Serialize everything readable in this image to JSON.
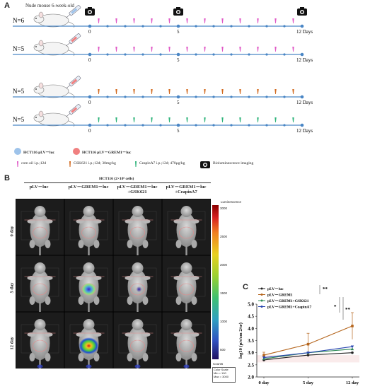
{
  "panel_a": {
    "letter": "A",
    "header": "Nude mouse 6-week-old",
    "timelines": [
      {
        "n_label": "N=6",
        "marker": "pink",
        "cells": "blue"
      },
      {
        "n_label": "N=5",
        "marker": "pink",
        "cells": "red"
      },
      {
        "n_label": "N=5",
        "marker": "orange",
        "cells": "red"
      },
      {
        "n_label": "N=5",
        "marker": "green",
        "cells": "red"
      }
    ],
    "tick_labels": {
      "start": "0",
      "mid": "5",
      "end": "12 Days"
    },
    "legend": {
      "cell1": "HCT116 pLV－luc",
      "cell2": "HCT116 pLV－GREM1－luc",
      "drug1": "corn oil i.p.;12d",
      "drug2": "GSK621 i.p.;12d; 30mg/kg",
      "drug3": "CeapinA7 i.p.;12d; 470μg/kg",
      "imaging": "Bioluminescence imaging"
    },
    "colors": {
      "timeline": "#4a86c5",
      "pink": "#e058c6",
      "orange": "#d2691e",
      "green": "#2db37a",
      "blue_dot": "#9ec3ea",
      "red_dot": "#f08080"
    }
  },
  "panel_b": {
    "letter": "B",
    "header": "HCT116 (2×10⁶ cells)",
    "columns": [
      "pLV－luc",
      "pLV－GREM1－luc",
      "pLV－GREM1－luc\n+GSK621",
      "pLV－GREM1－luc\n+CeapinA7"
    ],
    "rows": [
      "0 day",
      "5 day",
      "12 day"
    ],
    "colorbar": {
      "title": "Luminescence",
      "ticks": [
        "3000",
        "2500",
        "2000",
        "1500",
        "1000",
        "500"
      ],
      "counts_label": "Counts",
      "scale_box": [
        "Color Scale",
        "Min = 100",
        "Max = 3000"
      ]
    }
  },
  "panel_c": {
    "letter": "C",
    "significance": [
      "**",
      "*",
      "**"
    ]
  },
  "chart_data": {
    "type": "line",
    "categories": [
      "0 day",
      "5 day",
      "12 day"
    ],
    "ylabel": "log10 (p/s/cm 2/sr)",
    "ylim": [
      2.0,
      5.0
    ],
    "yticks": [
      "2.0",
      "2.5",
      "3.0",
      "3.5",
      "4.0",
      "4.5",
      "5.0"
    ],
    "series": [
      {
        "name": "pLV－luc",
        "values": [
          2.7,
          2.9,
          3.0
        ],
        "color": "#222222"
      },
      {
        "name": "pLV－GREM1",
        "values": [
          2.9,
          3.35,
          4.1
        ],
        "err": [
          0.12,
          0.45,
          0.55
        ],
        "color": "#b5651d"
      },
      {
        "name": "pLV－GREM1+GSK621",
        "values": [
          2.75,
          3.0,
          3.15
        ],
        "color": "#2e8b57"
      },
      {
        "name": "pLV－GREM1+CeapinA7",
        "values": [
          2.8,
          3.0,
          3.25
        ],
        "color": "#2845b0"
      }
    ]
  }
}
